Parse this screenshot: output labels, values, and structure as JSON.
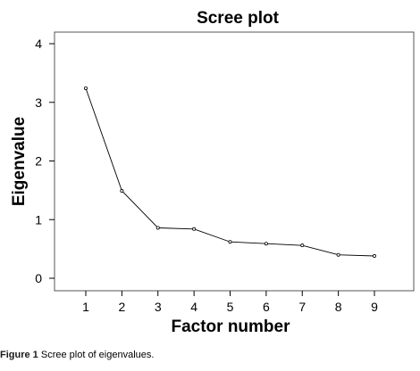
{
  "chart_data": {
    "type": "line",
    "title": "Scree plot",
    "xlabel": "Factor number",
    "ylabel": "Eigenvalue",
    "x": [
      1,
      2,
      3,
      4,
      5,
      6,
      7,
      8,
      9
    ],
    "y": [
      3.24,
      1.49,
      0.86,
      0.84,
      0.62,
      0.59,
      0.56,
      0.4,
      0.38
    ],
    "xticks": [
      "1",
      "2",
      "3",
      "4",
      "5",
      "6",
      "7",
      "8",
      "9"
    ],
    "yticks": [
      "0",
      "1",
      "2",
      "3",
      "4"
    ],
    "xlim": [
      0.5,
      9.5
    ],
    "ylim": [
      0,
      4
    ],
    "grid": false,
    "markers": "open-circle",
    "line_color": "#000000"
  },
  "caption": {
    "prefix": "Figure 1",
    "text": "Scree plot of eigenvalues."
  }
}
